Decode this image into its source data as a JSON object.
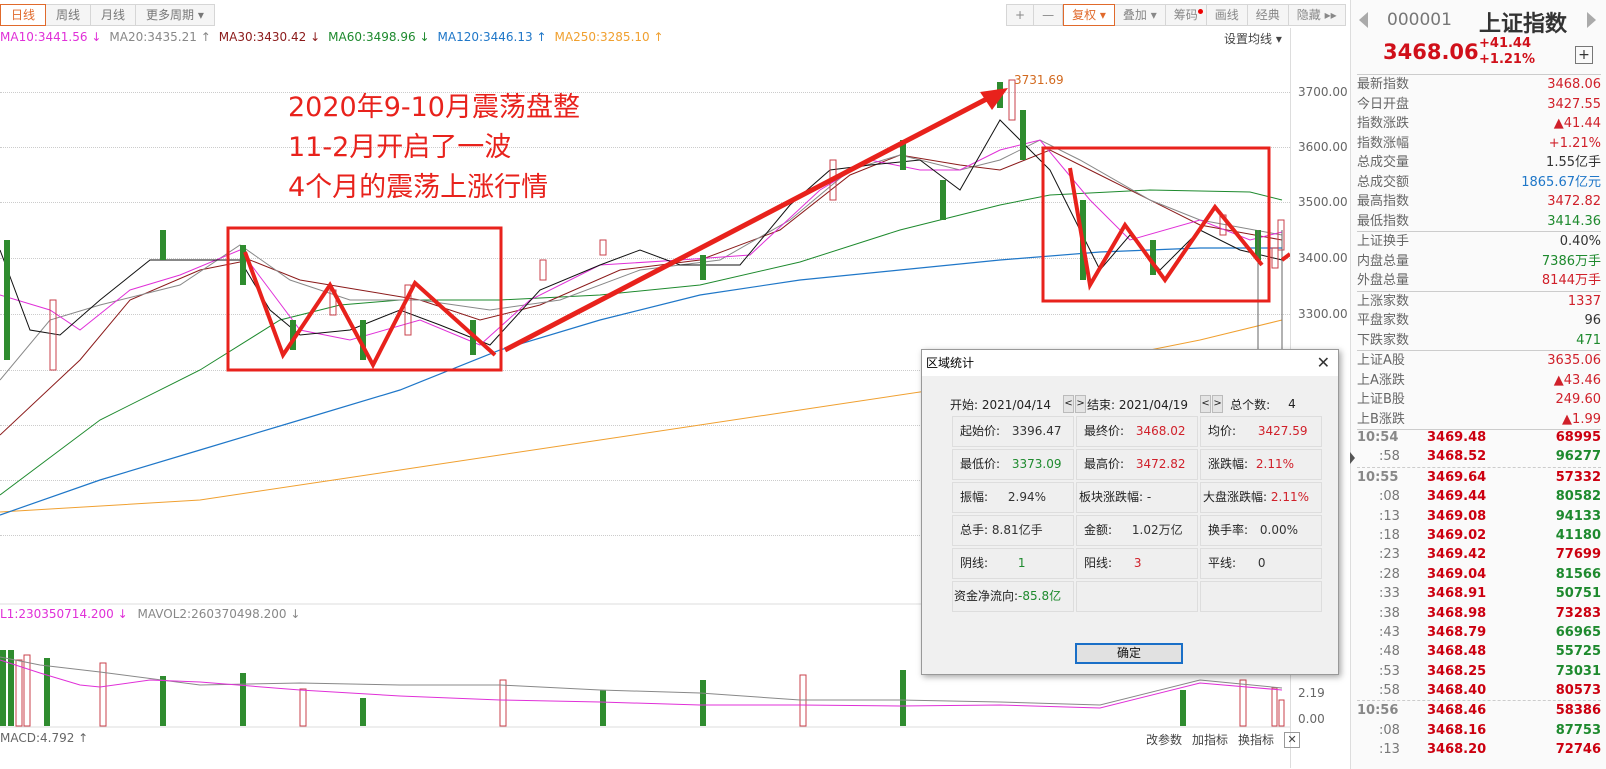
{
  "toolbar": {
    "periods": [
      {
        "label": "日线",
        "active": true
      },
      {
        "label": "周线"
      },
      {
        "label": "月线"
      },
      {
        "label": "更多周期 ▾"
      }
    ],
    "tools": [
      {
        "label": "+"
      },
      {
        "label": "—"
      },
      {
        "label": "复权 ▾",
        "active": true
      },
      {
        "label": "叠加 ▾"
      },
      {
        "label": "筹码",
        "dot": true
      },
      {
        "label": "画线"
      },
      {
        "label": "经典"
      },
      {
        "label": "隐藏 ▸▸"
      }
    ]
  },
  "ma_legend": [
    {
      "label": "MA10:3441.56 ↓",
      "color": "#e030d8"
    },
    {
      "label": "MA20:3435.21 ↑",
      "color": "#888888"
    },
    {
      "label": "MA30:3430.42 ↓",
      "color": "#8b1a1a"
    },
    {
      "label": "MA60:3498.96 ↓",
      "color": "#1e8a2e"
    },
    {
      "label": "MA120:3446.13 ↑",
      "color": "#1f77c8"
    },
    {
      "label": "MA250:3285.10 ↑",
      "color": "#f0a030"
    }
  ],
  "set_ma_label": "设置均线 ▾",
  "y_axis": [
    "3700.00",
    "3600.00",
    "3500.00",
    "3400.00",
    "3300.00"
  ],
  "peak_label": "3731.69",
  "annotation": [
    "2020年9-10月震荡盘整",
    "11-2月开启了一波",
    "4个月的震荡上涨行情"
  ],
  "volume_legend": {
    "mavol1": "L1:230350714.200 ↓",
    "mavol2": "MAVOL2:260370498.200 ↓"
  },
  "volume_axis": [
    "2.19",
    "0.00"
  ],
  "macd_label": "MACD:4.792 ↑",
  "bottom_tools": [
    "改参数",
    "加指标",
    "换指标"
  ],
  "dialog": {
    "title": "区域统计",
    "start_label": "开始: 2021/04/14",
    "end_label": "结束: 2021/04/19",
    "count_label": "总个数:",
    "count_value": "4",
    "cells": [
      {
        "label": "起始价:",
        "value": "3396.47",
        "color": "gray"
      },
      {
        "label": "最终价:",
        "value": "3468.02",
        "color": "red"
      },
      {
        "label": "均价:",
        "value": "3427.59",
        "color": "red"
      },
      {
        "label": "最低价:",
        "value": "3373.09",
        "color": "green"
      },
      {
        "label": "最高价:",
        "value": "3472.82",
        "color": "red"
      },
      {
        "label": "涨跌幅:",
        "value": "2.11%",
        "color": "red"
      },
      {
        "label": "振幅:",
        "value": "2.94%",
        "color": "gray"
      },
      {
        "label": "板块涨跌幅:",
        "value": "-",
        "color": "gray"
      },
      {
        "label": "大盘涨跌幅:",
        "value": "2.11%",
        "color": "red"
      },
      {
        "label": "总手:",
        "value": "8.81亿手",
        "color": "gray"
      },
      {
        "label": "金额:",
        "value": "1.02万亿",
        "color": "gray"
      },
      {
        "label": "换手率:",
        "value": "0.00%",
        "color": "gray"
      },
      {
        "label": "阴线:",
        "value": "1",
        "color": "green"
      },
      {
        "label": "阳线:",
        "value": "3",
        "color": "red"
      },
      {
        "label": "平线:",
        "value": "0",
        "color": "gray"
      },
      {
        "label": "资金净流向:",
        "value": "-85.8亿",
        "color": "green"
      },
      {
        "label": "",
        "value": "",
        "color": "gray"
      },
      {
        "label": "",
        "value": "",
        "color": "gray"
      }
    ],
    "ok_label": "确定"
  },
  "sidebar": {
    "code": "000001",
    "name": "上证指数",
    "price": "3468.06",
    "change": "+41.44",
    "change_pct": "+1.21%",
    "groups": [
      [
        {
          "label": "最新指数",
          "value": "3468.06",
          "color": "red"
        },
        {
          "label": "今日开盘",
          "value": "3427.55",
          "color": "red"
        },
        {
          "label": "指数涨跌",
          "value": "▲41.44",
          "color": "red"
        },
        {
          "label": "指数涨幅",
          "value": "+1.21%",
          "color": "red"
        },
        {
          "label": "总成交量",
          "value": "1.55亿手",
          "color": "gray"
        },
        {
          "label": "总成交额",
          "value": "1865.67亿元",
          "color": "blue"
        },
        {
          "label": "最高指数",
          "value": "3472.82",
          "color": "red"
        },
        {
          "label": "最低指数",
          "value": "3414.36",
          "color": "green"
        }
      ],
      [
        {
          "label": "上证换手",
          "value": "0.40%",
          "color": "gray"
        },
        {
          "label": "内盘总量",
          "value": "7386万手",
          "color": "green"
        },
        {
          "label": "外盘总量",
          "value": "8144万手",
          "color": "red"
        }
      ],
      [
        {
          "label": "上涨家数",
          "value": "1337",
          "color": "red"
        },
        {
          "label": "平盘家数",
          "value": "96",
          "color": "gray"
        },
        {
          "label": "下跌家数",
          "value": "471",
          "color": "green"
        }
      ],
      [
        {
          "label": "上证A股",
          "value": "3635.06",
          "color": "red"
        },
        {
          "label": "上A涨跌",
          "value": "▲43.46",
          "color": "red"
        },
        {
          "label": "上证B股",
          "value": "249.60",
          "color": "red"
        },
        {
          "label": "上B涨跌",
          "value": "▲1.99",
          "color": "red"
        }
      ]
    ],
    "ticks": [
      {
        "time": "10:54",
        "price": "3469.48",
        "vol": "68995",
        "vc": "red",
        "major": true
      },
      {
        "time": ":58",
        "price": "3468.52",
        "vol": "96277",
        "vc": "green"
      },
      {
        "time": "10:55",
        "price": "3469.64",
        "vol": "57332",
        "vc": "red",
        "major": true,
        "sep": true
      },
      {
        "time": ":08",
        "price": "3469.44",
        "vol": "80582",
        "vc": "green"
      },
      {
        "time": ":13",
        "price": "3469.08",
        "vol": "94133",
        "vc": "green"
      },
      {
        "time": ":18",
        "price": "3469.02",
        "vol": "41180",
        "vc": "green"
      },
      {
        "time": ":23",
        "price": "3469.42",
        "vol": "77699",
        "vc": "red"
      },
      {
        "time": ":28",
        "price": "3469.04",
        "vol": "81566",
        "vc": "green"
      },
      {
        "time": ":33",
        "price": "3468.91",
        "vol": "50751",
        "vc": "green"
      },
      {
        "time": ":38",
        "price": "3468.98",
        "vol": "73283",
        "vc": "red"
      },
      {
        "time": ":43",
        "price": "3468.79",
        "vol": "66965",
        "vc": "green"
      },
      {
        "time": ":48",
        "price": "3468.48",
        "vol": "55725",
        "vc": "green"
      },
      {
        "time": ":53",
        "price": "3468.25",
        "vol": "73031",
        "vc": "green"
      },
      {
        "time": ":58",
        "price": "3468.40",
        "vol": "80573",
        "vc": "red"
      },
      {
        "time": "10:56",
        "price": "3468.46",
        "vol": "58386",
        "vc": "red",
        "major": true,
        "sep": true
      },
      {
        "time": ":08",
        "price": "3468.16",
        "vol": "87753",
        "vc": "green"
      },
      {
        "time": ":13",
        "price": "3468.20",
        "vol": "72746",
        "vc": "red"
      }
    ]
  }
}
